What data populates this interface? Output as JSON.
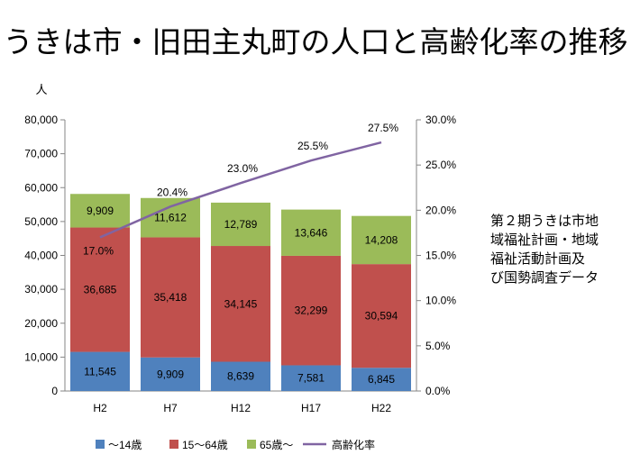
{
  "title": "うきは市・旧田主丸町の人口と高齢化率の推移",
  "source_note": [
    "第２期うきは市地",
    "域福祉計画・地域",
    "福祉活動計画及",
    "び国勢調査データ"
  ],
  "chart_data": {
    "type": "bar",
    "stacked": true,
    "categories": [
      "H2",
      "H7",
      "H12",
      "H17",
      "H22"
    ],
    "series": [
      {
        "name": "〜14歳",
        "color": "#4F81BD",
        "values": [
          11545,
          9909,
          8639,
          7581,
          6845
        ],
        "labels": [
          "11,545",
          "9,909",
          "8,639",
          "7,581",
          "6,845"
        ]
      },
      {
        "name": "15〜64歳",
        "color": "#C0504D",
        "values": [
          36685,
          35418,
          34145,
          32299,
          30594
        ],
        "labels": [
          "36,685",
          "35,418",
          "34,145",
          "32,299",
          "30,594"
        ]
      },
      {
        "name": "65歳〜",
        "color": "#9BBB59",
        "values": [
          9909,
          11612,
          12789,
          13646,
          14208
        ],
        "labels": [
          "9,909",
          "11,612",
          "12,789",
          "13,646",
          "14,208"
        ]
      }
    ],
    "line": {
      "name": "高齢化率",
      "color": "#8064A2",
      "values": [
        17.0,
        20.4,
        23.0,
        25.5,
        27.5
      ],
      "labels": [
        "17.0%",
        "20.4%",
        "23.0%",
        "25.5%",
        "27.5%"
      ]
    },
    "y_left": {
      "unit": "人",
      "min": 0,
      "max": 80000,
      "ticks": [
        "0",
        "10,000",
        "20,000",
        "30,000",
        "40,000",
        "50,000",
        "60,000",
        "70,000",
        "80,000"
      ]
    },
    "y_right": {
      "min": 0,
      "max": 30,
      "ticks": [
        "0.0%",
        "5.0%",
        "10.0%",
        "15.0%",
        "20.0%",
        "25.0%",
        "30.0%"
      ]
    },
    "grid": false,
    "legend": "bottom"
  }
}
